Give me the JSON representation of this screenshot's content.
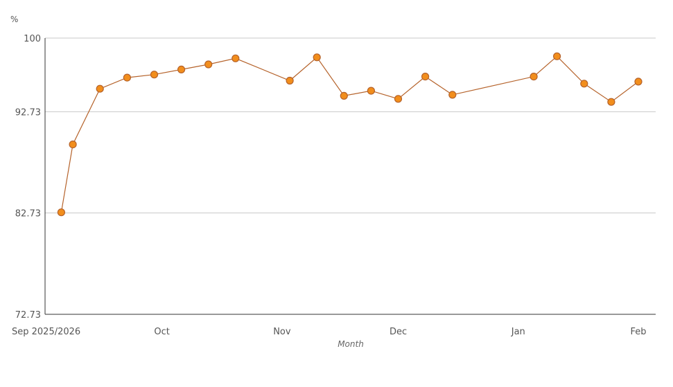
{
  "chart_data": {
    "type": "line",
    "title": "",
    "xlabel": "Month",
    "ylabel": "%",
    "ylim": [
      72.73,
      100
    ],
    "y_ticks": [
      {
        "value": 72.73,
        "label": "72.73"
      },
      {
        "value": 82.73,
        "label": "82.73"
      },
      {
        "value": 92.73,
        "label": "92.73"
      },
      {
        "value": 100,
        "label": "100"
      }
    ],
    "xlim": [
      "2025-09-01",
      "2026-02-01"
    ],
    "x_ticks": [
      {
        "date": "2025-09-01",
        "label": "Sep 2025/2026"
      },
      {
        "date": "2025-10-01",
        "label": "Oct"
      },
      {
        "date": "2025-11-01",
        "label": "Nov"
      },
      {
        "date": "2025-12-01",
        "label": "Dec"
      },
      {
        "date": "2026-01-01",
        "label": "Jan"
      },
      {
        "date": "2026-02-01",
        "label": "Feb"
      }
    ],
    "grid": true,
    "line_color": "#b5622a",
    "marker_color": "#f28e1c",
    "marker_edge_color": "#b5622a",
    "series": [
      {
        "values": [
          {
            "x": "2025-09-05",
            "y": 82.8
          },
          {
            "x": "2025-09-08",
            "y": 89.5
          },
          {
            "x": "2025-09-15",
            "y": 95.0
          },
          {
            "x": "2025-09-22",
            "y": 96.1
          },
          {
            "x": "2025-09-29",
            "y": 96.4
          },
          {
            "x": "2025-10-06",
            "y": 96.9
          },
          {
            "x": "2025-10-13",
            "y": 97.4
          },
          {
            "x": "2025-10-20",
            "y": 98.0
          },
          {
            "x": "2025-11-03",
            "y": 95.8
          },
          {
            "x": "2025-11-10",
            "y": 98.1
          },
          {
            "x": "2025-11-17",
            "y": 94.3
          },
          {
            "x": "2025-11-24",
            "y": 94.8
          },
          {
            "x": "2025-12-01",
            "y": 94.0
          },
          {
            "x": "2025-12-08",
            "y": 96.2
          },
          {
            "x": "2025-12-15",
            "y": 94.4
          },
          {
            "x": "2026-01-05",
            "y": 96.2
          },
          {
            "x": "2026-01-11",
            "y": 98.2
          },
          {
            "x": "2026-01-18",
            "y": 95.5
          },
          {
            "x": "2026-01-25",
            "y": 93.7
          },
          {
            "x": "2026-02-01",
            "y": 95.7
          }
        ]
      }
    ]
  }
}
